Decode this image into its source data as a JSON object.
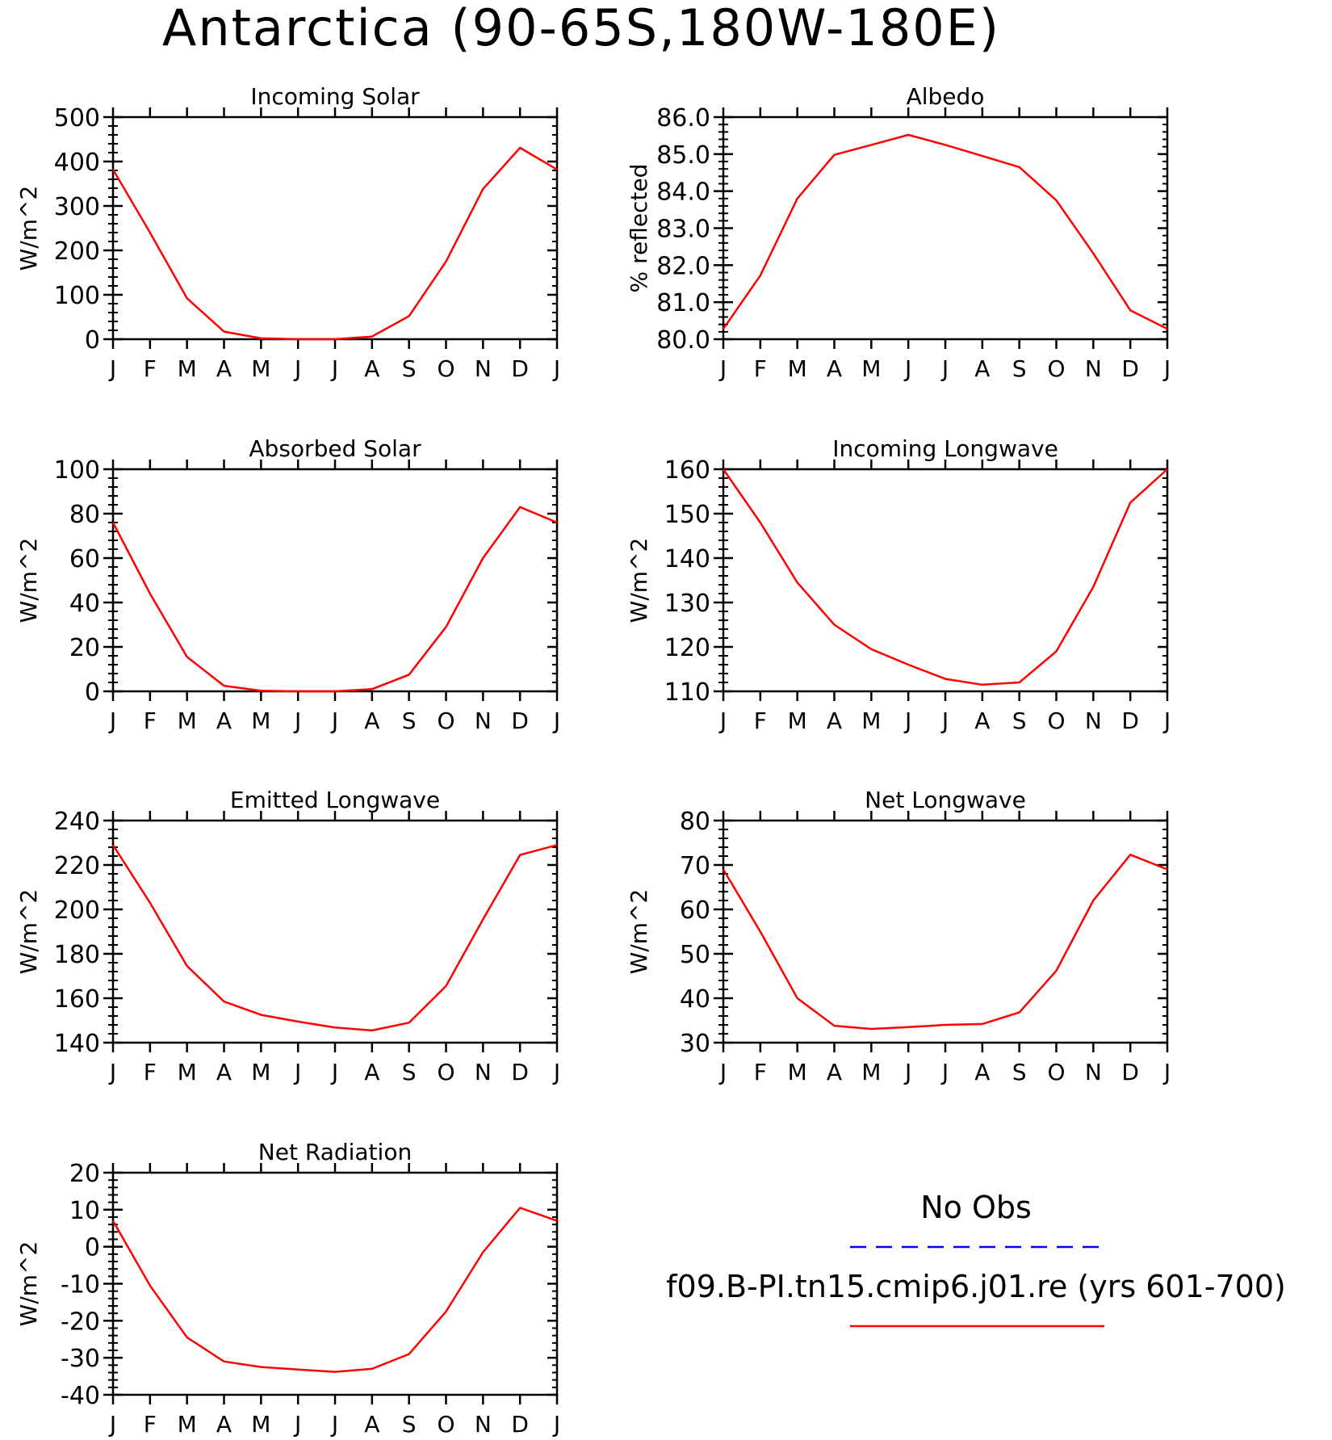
{
  "figure": {
    "title": "Antarctica (90-65S,180W-180E)"
  },
  "colors": {
    "model_line": "#ff0000",
    "obs_line": "#0000ff",
    "axis": "#000000"
  },
  "chart_data": [
    {
      "type": "line",
      "title": "Incoming Solar",
      "ylabel": "W/m^2",
      "xlabel": "",
      "categories": [
        "J",
        "F",
        "M",
        "A",
        "M",
        "J",
        "J",
        "A",
        "S",
        "O",
        "N",
        "D",
        "J"
      ],
      "ylim": [
        0,
        500
      ],
      "yticks": [
        0,
        100,
        200,
        300,
        400,
        500
      ],
      "ytick_labels": [
        "0",
        "100",
        "200",
        "300",
        "400",
        "500"
      ],
      "series": [
        {
          "values": [
            382,
            240,
            92,
            17,
            2,
            0,
            0,
            6,
            52,
            175,
            338,
            431,
            382
          ]
        }
      ]
    },
    {
      "type": "line",
      "title": "Albedo",
      "ylabel": "% reflected",
      "xlabel": "",
      "categories": [
        "J",
        "F",
        "M",
        "A",
        "M",
        "J",
        "J",
        "A",
        "S",
        "O",
        "N",
        "D",
        "J"
      ],
      "ylim": [
        80,
        86
      ],
      "yticks": [
        80,
        81,
        82,
        83,
        84,
        85,
        86
      ],
      "ytick_labels": [
        "80.0",
        "81.0",
        "82.0",
        "83.0",
        "84.0",
        "85.0",
        "86.0"
      ],
      "series": [
        {
          "values": [
            80.28,
            81.72,
            83.8,
            84.98,
            85.25,
            85.52,
            85.25,
            84.95,
            84.65,
            83.75,
            82.32,
            80.78,
            80.28
          ]
        }
      ]
    },
    {
      "type": "line",
      "title": "Absorbed Solar",
      "ylabel": "W/m^2",
      "xlabel": "",
      "categories": [
        "J",
        "F",
        "M",
        "A",
        "M",
        "J",
        "J",
        "A",
        "S",
        "O",
        "N",
        "D",
        "J"
      ],
      "ylim": [
        0,
        100
      ],
      "yticks": [
        0,
        20,
        40,
        60,
        80,
        100
      ],
      "ytick_labels": [
        "0",
        "20",
        "40",
        "60",
        "80",
        "100"
      ],
      "series": [
        {
          "values": [
            76,
            44,
            15.5,
            2.5,
            0.3,
            0,
            0,
            1,
            7.5,
            29,
            60,
            83,
            76
          ]
        }
      ]
    },
    {
      "type": "line",
      "title": "Incoming Longwave",
      "ylabel": "W/m^2",
      "xlabel": "",
      "categories": [
        "J",
        "F",
        "M",
        "A",
        "M",
        "J",
        "J",
        "A",
        "S",
        "O",
        "N",
        "D",
        "J"
      ],
      "ylim": [
        110,
        160
      ],
      "yticks": [
        110,
        120,
        130,
        140,
        150,
        160
      ],
      "ytick_labels": [
        "110",
        "120",
        "130",
        "140",
        "150",
        "160"
      ],
      "series": [
        {
          "values": [
            160,
            148,
            134.5,
            125,
            119.5,
            116,
            112.8,
            111.5,
            112,
            119,
            133.5,
            152.5,
            160
          ]
        }
      ]
    },
    {
      "type": "line",
      "title": "Emitted Longwave",
      "ylabel": "W/m^2",
      "xlabel": "",
      "categories": [
        "J",
        "F",
        "M",
        "A",
        "M",
        "J",
        "J",
        "A",
        "S",
        "O",
        "N",
        "D",
        "J"
      ],
      "ylim": [
        140,
        240
      ],
      "yticks": [
        140,
        160,
        180,
        200,
        220,
        240
      ],
      "ytick_labels": [
        "140",
        "160",
        "180",
        "200",
        "220",
        "240"
      ],
      "series": [
        {
          "values": [
            229,
            203,
            174.5,
            158.5,
            152.5,
            149.5,
            146.8,
            145.5,
            149,
            165.5,
            195.5,
            224.5,
            229
          ]
        }
      ]
    },
    {
      "type": "line",
      "title": "Net Longwave",
      "ylabel": "W/m^2",
      "xlabel": "",
      "categories": [
        "J",
        "F",
        "M",
        "A",
        "M",
        "J",
        "J",
        "A",
        "S",
        "O",
        "N",
        "D",
        "J"
      ],
      "ylim": [
        30,
        80
      ],
      "yticks": [
        30,
        40,
        50,
        60,
        70,
        80
      ],
      "ytick_labels": [
        "30",
        "40",
        "50",
        "60",
        "70",
        "80"
      ],
      "series": [
        {
          "values": [
            69,
            55,
            40,
            33.8,
            33.1,
            33.5,
            34,
            34.2,
            36.8,
            46.2,
            62,
            72.3,
            69
          ]
        }
      ]
    },
    {
      "type": "line",
      "title": "Net Radiation",
      "ylabel": "W/m^2",
      "xlabel": "",
      "categories": [
        "J",
        "F",
        "M",
        "A",
        "M",
        "J",
        "J",
        "A",
        "S",
        "O",
        "N",
        "D",
        "J"
      ],
      "ylim": [
        -40,
        20
      ],
      "yticks": [
        -40,
        -30,
        -20,
        -10,
        0,
        10,
        20
      ],
      "ytick_labels": [
        "-40",
        "-30",
        "-20",
        "-10",
        "0",
        "10",
        "20"
      ],
      "series": [
        {
          "values": [
            7,
            -10.5,
            -24.5,
            -31,
            -32.5,
            -33.2,
            -33.8,
            -33,
            -29,
            -17.5,
            -1.5,
            10.5,
            7
          ]
        }
      ]
    }
  ],
  "legend": {
    "obs_label": "No Obs",
    "model_label": "f09.B-PI.tn15.cmip6.j01.re (yrs 601-700)"
  }
}
